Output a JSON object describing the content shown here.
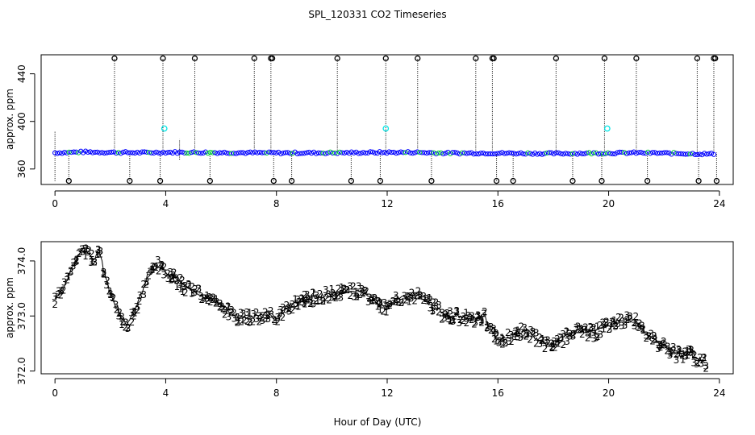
{
  "title": "SPL_120331  CO2 Timeseries",
  "shared_xlabel": "Hour of Day (UTC)",
  "colors": {
    "raw_points": "#0000ff",
    "raw_points_alt": "#00cc33",
    "spike_markers": "#000000",
    "cal_points": "#00e5e5",
    "series_1": "#ff0000",
    "series_2": "#00cc00",
    "series_3": "#0000ff",
    "line": "#000000"
  },
  "chart_data": [
    {
      "type": "scatter",
      "name": "raw",
      "ylabel": "approx. ppm",
      "xlim": [
        -0.5,
        24.5
      ],
      "ylim": [
        347,
        456
      ],
      "xticks": [
        0,
        4,
        8,
        12,
        16,
        20,
        24
      ],
      "yticks": [
        360,
        400,
        440
      ],
      "baseline": [
        [
          0,
          373.6
        ],
        [
          1,
          374.3
        ],
        [
          2,
          374.0
        ],
        [
          3,
          373.7
        ],
        [
          4,
          374.0
        ],
        [
          6,
          373.8
        ],
        [
          8,
          373.5
        ],
        [
          10,
          373.6
        ],
        [
          12,
          373.9
        ],
        [
          13,
          374.0
        ],
        [
          14,
          373.4
        ],
        [
          16,
          373.3
        ],
        [
          18,
          373.0
        ],
        [
          20,
          373.4
        ],
        [
          21,
          373.6
        ],
        [
          22,
          373.3
        ],
        [
          23.5,
          372.6
        ]
      ],
      "spikes_high": [
        2.15,
        3.9,
        5.05,
        7.2,
        7.8,
        7.85,
        10.2,
        11.95,
        13.1,
        15.2,
        15.8,
        15.85,
        18.1,
        19.85,
        21.0,
        23.2,
        23.8,
        23.85
      ],
      "spike_high_value": 453,
      "spikes_low": [
        0.5,
        2.7,
        3.8,
        5.6,
        7.9,
        8.55,
        10.7,
        11.75,
        13.6,
        15.95,
        16.55,
        18.7,
        19.75,
        21.4,
        23.25,
        23.9
      ],
      "spike_low_value": 350,
      "calibration": [
        {
          "x": 3.95,
          "y": 394
        },
        {
          "x": 11.95,
          "y": 394
        },
        {
          "x": 19.95,
          "y": 394
        }
      ],
      "trace_lines": [
        {
          "x": 0,
          "y0": 350,
          "y1": 392
        },
        {
          "x": 0.5,
          "y0": 350,
          "y1": 374
        },
        {
          "x": 2.15,
          "y0": 374,
          "y1": 453
        },
        {
          "x": 2.7,
          "y0": 350,
          "y1": 374
        },
        {
          "x": 3.8,
          "y0": 350,
          "y1": 374
        },
        {
          "x": 3.9,
          "y0": 374,
          "y1": 453
        },
        {
          "x": 4.5,
          "y0": 368,
          "y1": 385
        },
        {
          "x": 5.05,
          "y0": 374,
          "y1": 453
        },
        {
          "x": 5.6,
          "y0": 350,
          "y1": 374
        },
        {
          "x": 7.2,
          "y0": 374,
          "y1": 453
        },
        {
          "x": 7.8,
          "y0": 374,
          "y1": 453
        },
        {
          "x": 7.9,
          "y0": 350,
          "y1": 374
        },
        {
          "x": 8.55,
          "y0": 350,
          "y1": 374
        },
        {
          "x": 10.2,
          "y0": 374,
          "y1": 453
        },
        {
          "x": 10.7,
          "y0": 350,
          "y1": 374
        },
        {
          "x": 11.75,
          "y0": 350,
          "y1": 374
        },
        {
          "x": 11.95,
          "y0": 374,
          "y1": 453
        },
        {
          "x": 13.1,
          "y0": 374,
          "y1": 453
        },
        {
          "x": 13.6,
          "y0": 350,
          "y1": 374
        },
        {
          "x": 15.2,
          "y0": 374,
          "y1": 453
        },
        {
          "x": 15.8,
          "y0": 374,
          "y1": 453
        },
        {
          "x": 15.95,
          "y0": 350,
          "y1": 374
        },
        {
          "x": 16.55,
          "y0": 350,
          "y1": 374
        },
        {
          "x": 18.1,
          "y0": 374,
          "y1": 453
        },
        {
          "x": 18.7,
          "y0": 350,
          "y1": 374
        },
        {
          "x": 19.75,
          "y0": 350,
          "y1": 374
        },
        {
          "x": 19.85,
          "y0": 374,
          "y1": 453
        },
        {
          "x": 21.0,
          "y0": 374,
          "y1": 453
        },
        {
          "x": 21.4,
          "y0": 350,
          "y1": 374
        },
        {
          "x": 23.2,
          "y0": 374,
          "y1": 453
        },
        {
          "x": 23.25,
          "y0": 350,
          "y1": 374
        },
        {
          "x": 23.8,
          "y0": 374,
          "y1": 453
        },
        {
          "x": 23.9,
          "y0": 350,
          "y1": 374
        }
      ]
    },
    {
      "type": "line",
      "name": "smoothed",
      "ylabel": "approx. ppm",
      "xlim": [
        -0.5,
        24.5
      ],
      "ylim": [
        371.95,
        374.35
      ],
      "xticks": [
        0,
        4,
        8,
        12,
        16,
        20,
        24
      ],
      "yticks": [
        372.0,
        373.0,
        374.0
      ],
      "ytick_labels": [
        "372.0",
        "373.0",
        "374.0"
      ],
      "series": [
        {
          "name": "1",
          "label": "1"
        },
        {
          "name": "2",
          "label": "2"
        },
        {
          "name": "3",
          "label": "3"
        }
      ],
      "x": [
        0.0,
        0.2,
        0.4,
        0.6,
        0.8,
        1.0,
        1.2,
        1.4,
        1.6,
        1.8,
        2.0,
        2.2,
        2.4,
        2.6,
        2.8,
        3.0,
        3.2,
        3.4,
        3.6,
        3.8,
        4.0,
        4.4,
        4.8,
        5.2,
        5.6,
        6.0,
        6.4,
        6.8,
        7.2,
        7.6,
        8.0,
        8.5,
        9.0,
        9.5,
        10.0,
        10.5,
        11.0,
        11.5,
        12.0,
        12.5,
        13.0,
        13.5,
        14.0,
        14.5,
        15.0,
        15.5,
        16.0,
        16.5,
        17.0,
        17.5,
        18.0,
        18.5,
        19.0,
        19.5,
        20.0,
        20.5,
        21.0,
        21.5,
        22.0,
        22.5,
        23.0,
        23.5
      ],
      "y": [
        373.3,
        373.45,
        373.6,
        373.85,
        374.05,
        374.25,
        374.15,
        374.0,
        374.2,
        373.75,
        373.4,
        373.15,
        372.95,
        372.85,
        373.05,
        373.25,
        373.5,
        373.85,
        373.95,
        373.9,
        373.8,
        373.65,
        373.5,
        373.4,
        373.3,
        373.2,
        373.05,
        372.95,
        373.0,
        373.05,
        372.95,
        373.2,
        373.3,
        373.35,
        373.4,
        373.45,
        373.45,
        373.3,
        373.15,
        373.35,
        373.4,
        373.25,
        373.05,
        373.0,
        372.95,
        373.0,
        372.55,
        372.65,
        372.75,
        372.55,
        372.45,
        372.65,
        372.75,
        372.7,
        372.85,
        372.95,
        372.9,
        372.6,
        372.45,
        372.3,
        372.3,
        372.15
      ]
    }
  ]
}
